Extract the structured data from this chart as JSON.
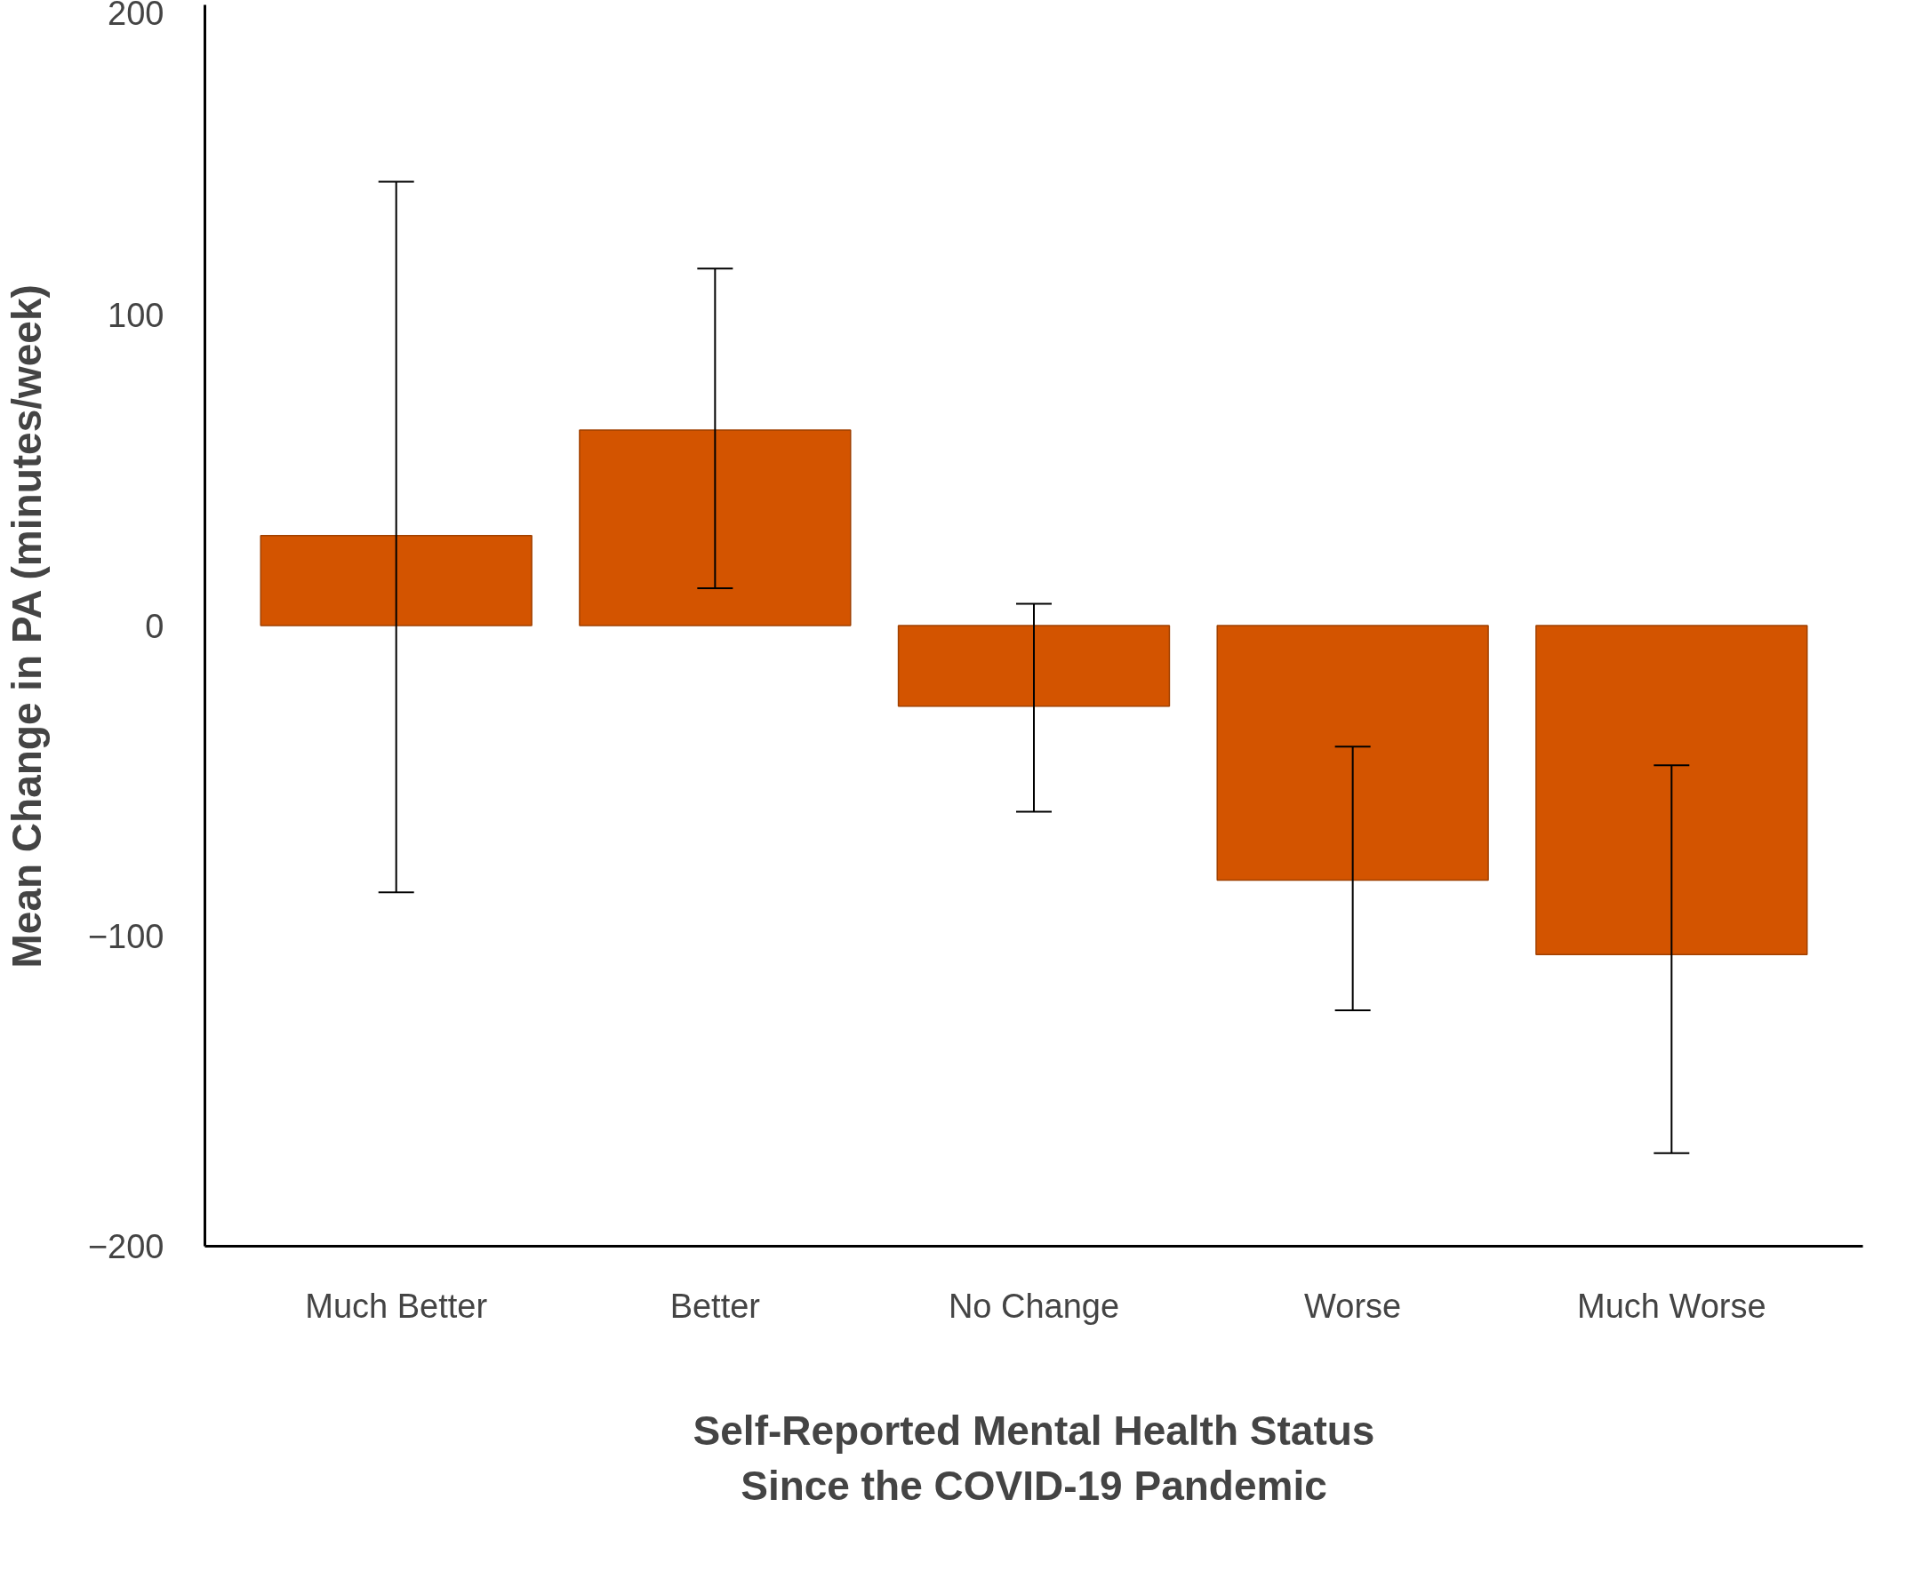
{
  "chart_data": {
    "type": "bar",
    "xlabel": "Self-Reported Mental Health Status\nSince the COVID-19 Pandemic",
    "ylabel": "Mean Change in PA (minutes/week)",
    "categories": [
      "Much Better",
      "Better",
      "No Change",
      "Worse",
      "Much Worse"
    ],
    "values": [
      29,
      63,
      -26,
      -82,
      -106
    ],
    "errors": [
      [
        -86,
        143
      ],
      [
        12,
        115
      ],
      [
        -60,
        7
      ],
      [
        -124,
        -39
      ],
      [
        -170,
        -45
      ]
    ],
    "color": "#d35400",
    "ylim": [
      -200,
      200
    ],
    "yticks": [
      -200,
      -100,
      0,
      100,
      200
    ],
    "grid": false
  }
}
